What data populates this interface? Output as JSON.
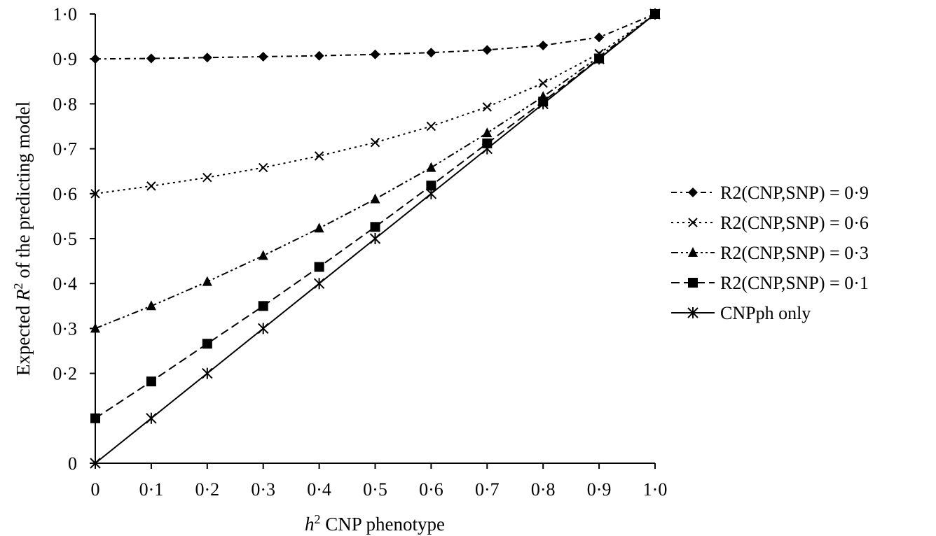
{
  "chart_data": {
    "type": "line",
    "x": [
      0,
      0.1,
      0.2,
      0.3,
      0.4,
      0.5,
      0.6,
      0.7,
      0.8,
      0.9,
      1.0
    ],
    "x_tick_labels": [
      "0",
      "0·1",
      "0·2",
      "0·3",
      "0·4",
      "0·5",
      "0·6",
      "0·7",
      "0·8",
      "0·9",
      "1·0"
    ],
    "y_ticks": [
      0,
      0.2,
      0.3,
      0.4,
      0.5,
      0.6,
      0.7,
      0.8,
      0.9,
      1.0
    ],
    "y_tick_labels": [
      "0",
      "0·2",
      "0·3",
      "0·4",
      "0·5",
      "0·6",
      "0·7",
      "0·8",
      "0·9",
      "1·0"
    ],
    "xlim": [
      0,
      1
    ],
    "ylim": [
      0,
      1
    ],
    "xlabel": {
      "pre": "h",
      "sup": "2",
      "post": " CNP phenotype"
    },
    "ylabel": {
      "pre": "Expected ",
      "var": "R",
      "sup": "2",
      "post": " of the predicting model"
    },
    "grid": false,
    "legend_position": "right",
    "series": [
      {
        "name": "R2(CNP,SNP) = 0·9",
        "marker": "diamond",
        "dash": "8,5,3,5",
        "color": "#000000",
        "values": [
          0.9,
          0.901,
          0.903,
          0.905,
          0.907,
          0.91,
          0.914,
          0.92,
          0.93,
          0.948,
          1.0
        ]
      },
      {
        "name": "R2(CNP,SNP) = 0·6",
        "marker": "x",
        "dash": "3,5",
        "color": "#000000",
        "values": [
          0.6,
          0.617,
          0.636,
          0.658,
          0.684,
          0.714,
          0.75,
          0.793,
          0.846,
          0.912,
          1.0
        ]
      },
      {
        "name": "R2(CNP,SNP) = 0·3",
        "marker": "triangle",
        "dash": "10,4,3,4,3,4",
        "color": "#000000",
        "values": [
          0.3,
          0.35,
          0.404,
          0.462,
          0.523,
          0.588,
          0.658,
          0.735,
          0.816,
          0.905,
          1.0
        ]
      },
      {
        "name": "R2(CNP,SNP) = 0·1",
        "marker": "square",
        "dash": "12,6",
        "color": "#000000",
        "values": [
          0.1,
          0.182,
          0.266,
          0.35,
          0.437,
          0.526,
          0.618,
          0.712,
          0.805,
          0.901,
          1.0
        ]
      },
      {
        "name": "CNPph only",
        "marker": "asterisk",
        "dash": "",
        "color": "#000000",
        "values": [
          0.0,
          0.1,
          0.2,
          0.3,
          0.4,
          0.5,
          0.6,
          0.7,
          0.8,
          0.9,
          1.0
        ]
      }
    ]
  }
}
